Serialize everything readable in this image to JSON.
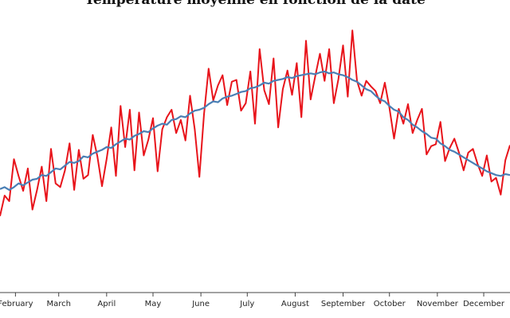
{
  "chart_data": {
    "type": "line",
    "title": "Température moyenne en fonction de la date",
    "xlabel": "",
    "ylabel": "",
    "x_tick_labels": [
      "February",
      "March",
      "April",
      "May",
      "June",
      "July",
      "August",
      "September",
      "October",
      "November",
      "December"
    ],
    "x_range_day_of_year": [
      22,
      352
    ],
    "y_range": [
      -5,
      25
    ],
    "grid": false,
    "legend": "none",
    "series": [
      {
        "style": "daily",
        "color": "#e8141b",
        "x": [
          22,
          25,
          28,
          31,
          34,
          37,
          40,
          43,
          46,
          49,
          52,
          55,
          58,
          61,
          64,
          67,
          70,
          73,
          76,
          79,
          82,
          85,
          88,
          91,
          94,
          97,
          100,
          103,
          106,
          109,
          112,
          115,
          118,
          121,
          124,
          127,
          130,
          133,
          136,
          139,
          142,
          145,
          148,
          151,
          154,
          157,
          160,
          163,
          166,
          169,
          172,
          175,
          178,
          181,
          184,
          187,
          190,
          193,
          196,
          199,
          202,
          205,
          208,
          211,
          214,
          217,
          220,
          223,
          226,
          229,
          232,
          235,
          238,
          241,
          244,
          247,
          250,
          253,
          256,
          259,
          262,
          265,
          268,
          271,
          274,
          277,
          280,
          283,
          286,
          289,
          292,
          295,
          298,
          301,
          304,
          307,
          310,
          313,
          316,
          319,
          322,
          325,
          328,
          331,
          334,
          337,
          340,
          343,
          346,
          349,
          352
        ],
        "values": [
          3.2,
          5.4,
          4.8,
          9.3,
          7.5,
          5.9,
          8.3,
          3.9,
          6.0,
          8.5,
          4.8,
          10.4,
          6.7,
          6.3,
          8.1,
          11.0,
          6.0,
          10.3,
          7.2,
          7.6,
          11.9,
          9.6,
          6.4,
          9.3,
          12.7,
          7.5,
          15.0,
          10.6,
          14.6,
          8.1,
          14.3,
          9.7,
          11.4,
          13.7,
          8.0,
          12.5,
          13.8,
          14.6,
          12.1,
          13.5,
          11.3,
          16.1,
          12.5,
          7.4,
          14.1,
          19.0,
          15.6,
          17.2,
          18.3,
          15.1,
          17.6,
          17.8,
          14.5,
          15.3,
          18.7,
          13.1,
          21.1,
          16.7,
          15.2,
          20.1,
          12.7,
          16.8,
          18.8,
          16.2,
          19.6,
          13.8,
          22.0,
          15.7,
          18.2,
          20.6,
          17.7,
          21.1,
          15.3,
          17.9,
          21.5,
          16.0,
          23.1,
          17.7,
          16.1,
          17.7,
          17.1,
          16.6,
          15.3,
          17.5,
          14.8,
          11.5,
          14.7,
          13.1,
          15.2,
          12.1,
          13.5,
          14.7,
          9.8,
          10.7,
          10.9,
          13.3,
          9.1,
          10.5,
          11.5,
          10.0,
          8.1,
          10.0,
          10.4,
          8.8,
          7.5,
          9.7,
          6.9,
          7.3,
          5.5,
          9.2,
          10.8
        ]
      },
      {
        "style": "smoothed",
        "color": "#4a7fb5",
        "x": [
          22,
          25,
          28,
          31,
          34,
          37,
          40,
          43,
          46,
          49,
          52,
          55,
          58,
          61,
          64,
          67,
          70,
          73,
          76,
          79,
          82,
          85,
          88,
          91,
          94,
          97,
          100,
          103,
          106,
          109,
          112,
          115,
          118,
          121,
          124,
          127,
          130,
          133,
          136,
          139,
          142,
          145,
          148,
          151,
          154,
          157,
          160,
          163,
          166,
          169,
          172,
          175,
          178,
          181,
          184,
          187,
          190,
          193,
          196,
          199,
          202,
          205,
          208,
          211,
          214,
          217,
          220,
          223,
          226,
          229,
          232,
          235,
          238,
          241,
          244,
          247,
          250,
          253,
          256,
          259,
          262,
          265,
          268,
          271,
          274,
          277,
          280,
          283,
          286,
          289,
          292,
          295,
          298,
          301,
          304,
          307,
          310,
          313,
          316,
          319,
          322,
          325,
          328,
          331,
          334,
          337,
          340,
          343,
          346,
          349,
          352
        ],
        "values": [
          6.1,
          6.3,
          6.0,
          6.3,
          6.7,
          6.5,
          6.8,
          7.1,
          7.2,
          7.6,
          7.5,
          7.9,
          8.3,
          8.2,
          8.6,
          9.0,
          8.9,
          9.1,
          9.6,
          9.5,
          9.9,
          10.1,
          10.3,
          10.6,
          10.5,
          10.9,
          11.2,
          11.5,
          11.4,
          11.8,
          12.0,
          12.3,
          12.2,
          12.6,
          12.9,
          13.1,
          13.0,
          13.5,
          13.6,
          13.9,
          13.8,
          14.2,
          14.5,
          14.6,
          14.8,
          15.2,
          15.5,
          15.4,
          15.8,
          16.0,
          16.1,
          16.3,
          16.5,
          16.6,
          16.9,
          17.0,
          17.2,
          17.5,
          17.4,
          17.7,
          17.8,
          17.9,
          18.1,
          18.0,
          18.2,
          18.3,
          18.4,
          18.5,
          18.4,
          18.6,
          18.7,
          18.5,
          18.6,
          18.4,
          18.3,
          18.1,
          17.8,
          17.6,
          17.2,
          16.8,
          16.6,
          16.1,
          15.7,
          15.5,
          15.0,
          14.6,
          14.4,
          13.8,
          13.5,
          13.0,
          12.7,
          12.3,
          12.0,
          11.6,
          11.5,
          11.0,
          10.7,
          10.3,
          10.1,
          9.8,
          9.5,
          9.2,
          8.9,
          8.6,
          8.3,
          8.0,
          7.8,
          7.6,
          7.5,
          7.7,
          7.6
        ]
      }
    ]
  }
}
